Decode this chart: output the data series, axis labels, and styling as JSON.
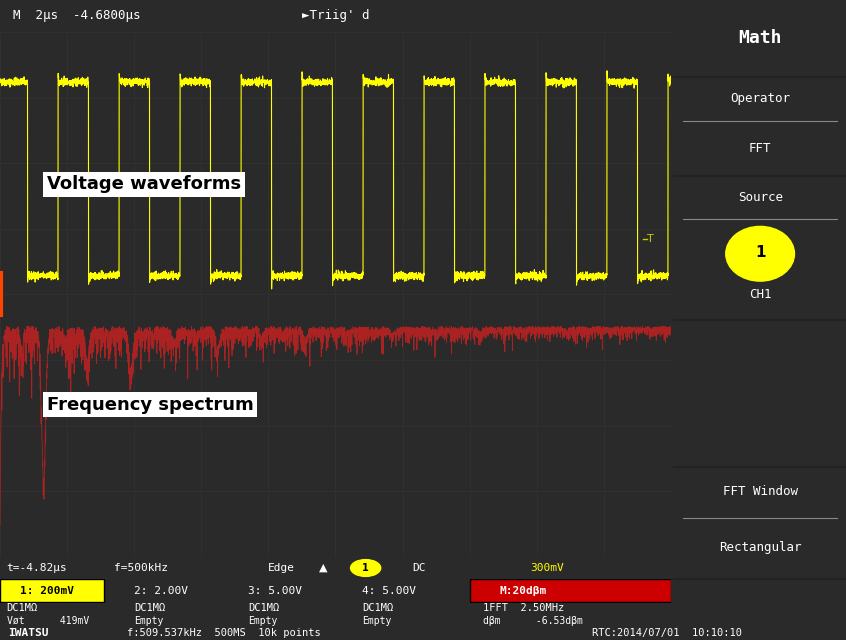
{
  "bg_color": "#2a2a2a",
  "screen_bg": "#000000",
  "header_bg": "#1a1a1a",
  "panel_bg": "#4a4a4a",
  "grid_color": "#333333",
  "yellow_color": "#ffff00",
  "red_wave_color": "#aa2222",
  "white_color": "#ffffff",
  "label_voltage": "Voltage waveforms",
  "label_freq": "Frequency spectrum",
  "title_bar_text": "M  2μs  -4.6800μs",
  "trig_text": "►Triig' d",
  "trigger_marker": "T",
  "status_t": "t=-4.82μs",
  "status_f": "f=500kHz",
  "status_edge": "Edge",
  "status_dc": "DC",
  "status_mv": "300mV",
  "ch1_text": "1: 200mV",
  "ch2_text": "2: 2.00V",
  "ch3_text": "3: 5.00V",
  "ch4_text": "4: 5.00V",
  "math_text": "M:20dβm",
  "dc1mo": "DC1MΩ",
  "vet_text": "Vøt      419mV",
  "empty_text": "Empty",
  "fft_info": "1FFT  2.50MHz",
  "dbm_text": "dβm      -6.53dβm",
  "iwatsu_text": "IWATSU",
  "bottom_info": "f:509.537kHz  500MS  10k points",
  "rtc_text": "RTC:2014/07/01  10:10:10",
  "math_panel": "Math",
  "operator_panel": "Operator",
  "fft_panel": "FFT",
  "source_panel": "Source",
  "ch1_label": "CH1",
  "ch1_num": "1",
  "fft_window_panel": "FFT Window",
  "rectangular_panel": "Rectangular"
}
